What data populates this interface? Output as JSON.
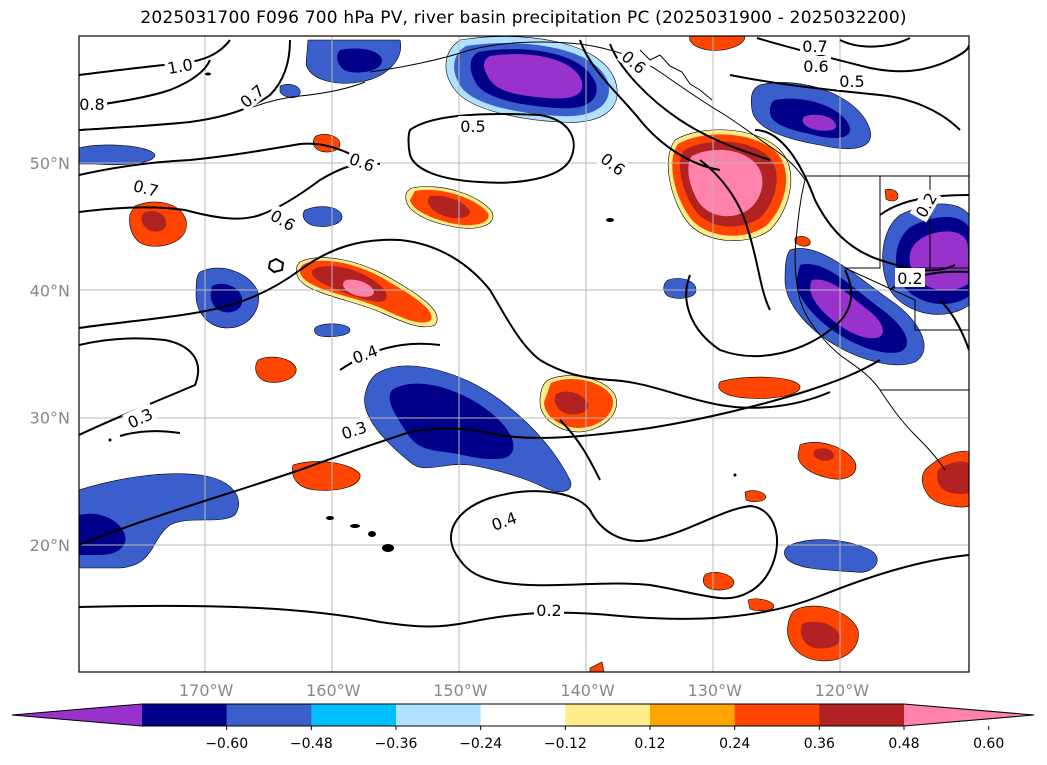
{
  "title": "2025031700 F096 700 hPa PV, river basin precipitation PC (2025031900 - 2025032200)",
  "map": {
    "lat_labels": [
      {
        "text": "50°N",
        "lat": 50
      },
      {
        "text": "40°N",
        "lat": 40
      },
      {
        "text": "30°N",
        "lat": 30
      },
      {
        "text": "20°N",
        "lat": 20
      }
    ],
    "lon_labels": [
      {
        "text": "170°W",
        "lon": -170
      },
      {
        "text": "160°W",
        "lon": -160
      },
      {
        "text": "150°W",
        "lon": -150
      },
      {
        "text": "140°W",
        "lon": -140
      },
      {
        "text": "130°W",
        "lon": -130
      },
      {
        "text": "120°W",
        "lon": -120
      }
    ],
    "contour_labels": [
      "1.0",
      "0.8",
      "0.7",
      "0.7",
      "0.6",
      "0.6",
      "0.5",
      "0.6",
      "0.6",
      "0.7",
      "0.6",
      "0.5",
      "0.4",
      "0.3",
      "0.3",
      "0.4",
      "0.2",
      "0.2",
      "0.2"
    ]
  },
  "colorbar": {
    "colors": [
      "#9932CC",
      "#00008B",
      "#3A5FCD",
      "#00BFFF",
      "#B0E2FF",
      "#FFFFFF",
      "#FFEC8B",
      "#FFA500",
      "#FF4500",
      "#B22222",
      "#FF82AB"
    ],
    "tick_labels": [
      "−0.60",
      "−0.48",
      "−0.36",
      "−0.24",
      "−0.12",
      "0.12",
      "0.24",
      "0.36",
      "0.48",
      "0.60"
    ]
  }
}
